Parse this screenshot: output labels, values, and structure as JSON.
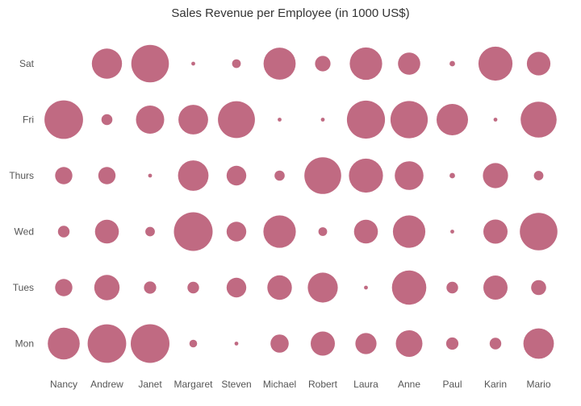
{
  "chart_data": {
    "type": "heatmap",
    "title": "Sales Revenue per Employee (in 1000 US$)",
    "xlabel": "",
    "ylabel": "",
    "encoding": "bubble size",
    "bubble_color": "#c06a82",
    "grid": false,
    "legend": "none",
    "x_categories": [
      "Nancy",
      "Andrew",
      "Janet",
      "Margaret",
      "Steven",
      "Michael",
      "Robert",
      "Laura",
      "Anne",
      "Paul",
      "Karin",
      "Mario"
    ],
    "y_categories": [
      "Sat",
      "Fri",
      "Thurs",
      "Wed",
      "Tues",
      "Mon"
    ],
    "values": [
      [
        0,
        61,
        94,
        1,
        5,
        69,
        16,
        70,
        33,
        2,
        77,
        37
      ],
      [
        99,
        8,
        53,
        59,
        91,
        1,
        1,
        97,
        93,
        66,
        1,
        86
      ],
      [
        20,
        20,
        1,
        62,
        26,
        7,
        90,
        77,
        55,
        2,
        42,
        6
      ],
      [
        9,
        38,
        6,
        100,
        26,
        70,
        5,
        38,
        70,
        1,
        39,
        94
      ],
      [
        20,
        43,
        10,
        9,
        26,
        40,
        60,
        1,
        79,
        9,
        39,
        15
      ],
      [
        68,
        99,
        100,
        4,
        1,
        22,
        39,
        30,
        47,
        10,
        9,
        62
      ]
    ]
  }
}
